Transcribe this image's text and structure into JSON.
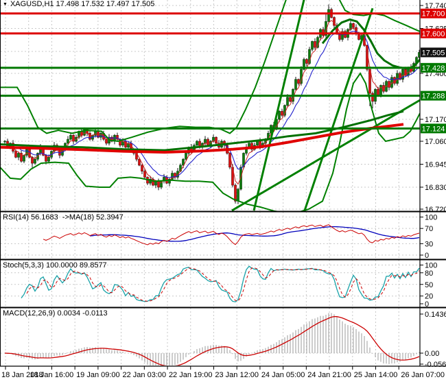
{
  "header": {
    "symbol_line": "XAGUSD,H1 17.498 17.532 17.497 17.505"
  },
  "panels": {
    "rsi_label": "RSI(14) 56.1683  ->MA(18) 52.3947",
    "stoch_label": "Stoch(5,3,3) 100.0000 89.8577",
    "macd_label": "MACD(12,26,9) 0.0034 -0.0113"
  },
  "chart_data": {
    "type": "candlestick",
    "symbol": "XAGUSD",
    "timeframe": "H1",
    "ohlc_display": {
      "open": "17.498",
      "high": "17.532",
      "low": "17.497",
      "close": "17.505"
    },
    "x_labels": [
      "18 Jan 2018",
      "18 Jan 16:00",
      "19 Jan 09:00",
      "22 Jan 03:00",
      "22 Jan 19:00",
      "23 Jan 12:00",
      "24 Jan 05:00",
      "24 Jan 21:00",
      "25 Jan 14:00",
      "26 Jan 07:00"
    ],
    "price_axis": {
      "min": 16.705,
      "max": 17.745,
      "ticks": [
        {
          "label": "17.740",
          "price": 17.74
        },
        {
          "label": "17.625",
          "price": 17.625
        },
        {
          "label": "17.400",
          "price": 17.4
        },
        {
          "label": "17.170",
          "price": 17.17
        },
        {
          "label": "17.060",
          "price": 17.06
        },
        {
          "label": "16.945",
          "price": 16.945
        },
        {
          "label": "16.830",
          "price": 16.83
        },
        {
          "label": "16.720",
          "price": 16.72
        }
      ],
      "grid_prices": [
        17.74,
        17.625,
        17.51,
        17.4,
        17.288,
        17.17,
        17.06,
        16.945,
        16.83,
        16.72
      ]
    },
    "badges": [
      {
        "label": "17.700",
        "price": 17.7,
        "color": "#dd0000"
      },
      {
        "label": "17.600",
        "price": 17.6,
        "color": "#dd0000"
      },
      {
        "label": "17.505",
        "price": 17.505,
        "color": "#111111"
      },
      {
        "label": "17.428",
        "price": 17.428,
        "color": "#007a00"
      },
      {
        "label": "17.288",
        "price": 17.288,
        "color": "#007a00"
      },
      {
        "label": "17.124",
        "price": 17.124,
        "color": "#007a00"
      }
    ],
    "levels": [
      {
        "price": 17.7,
        "color": "#dd0000",
        "width": 3
      },
      {
        "price": 17.6,
        "color": "#dd0000",
        "width": 3
      },
      {
        "price": 17.428,
        "color": "#007800",
        "width": 3
      },
      {
        "price": 17.288,
        "color": "#007800",
        "width": 3
      },
      {
        "price": 17.124,
        "color": "#007800",
        "width": 3
      }
    ],
    "closes": [
      17.06,
      17.03,
      17.05,
      17.01,
      16.98,
      17.0,
      16.96,
      16.99,
      17.02,
      16.98,
      16.95,
      16.97,
      17.0,
      17.03,
      16.99,
      16.96,
      16.98,
      17.01,
      17.04,
      17.02,
      16.99,
      17.02,
      17.05,
      17.07,
      17.09,
      17.06,
      17.08,
      17.11,
      17.09,
      17.12,
      17.1,
      17.07,
      17.09,
      17.11,
      17.08,
      17.1,
      17.07,
      17.05,
      17.08,
      17.06,
      17.09,
      17.07,
      17.04,
      17.06,
      17.03,
      17.05,
      17.02,
      17.0,
      16.97,
      16.94,
      16.91,
      16.88,
      16.85,
      16.87,
      16.84,
      16.86,
      16.83,
      16.86,
      16.88,
      16.85,
      16.87,
      16.9,
      16.88,
      16.91,
      16.94,
      16.97,
      17.0,
      17.03,
      17.01,
      17.04,
      17.06,
      17.03,
      17.05,
      17.07,
      17.04,
      17.06,
      17.08,
      17.05,
      17.03,
      17.06,
      17.04,
      17.0,
      16.93,
      16.84,
      16.76,
      16.82,
      16.93,
      17.0,
      17.03,
      17.05,
      17.02,
      17.04,
      17.06,
      17.03,
      17.05,
      17.07,
      17.1,
      17.14,
      17.12,
      17.17,
      17.21,
      17.19,
      17.24,
      17.28,
      17.26,
      17.32,
      17.37,
      17.35,
      17.42,
      17.47,
      17.45,
      17.52,
      17.56,
      17.53,
      17.58,
      17.62,
      17.59,
      17.66,
      17.72,
      17.68,
      17.64,
      17.6,
      17.57,
      17.61,
      17.58,
      17.62,
      17.65,
      17.63,
      17.6,
      17.57,
      17.59,
      17.54,
      17.42,
      17.3,
      17.26,
      17.32,
      17.29,
      17.34,
      17.31,
      17.36,
      17.33,
      17.38,
      17.35,
      17.4,
      17.37,
      17.42,
      17.39,
      17.43,
      17.41,
      17.45,
      17.48,
      17.505
    ],
    "wick_overrides": {
      "10": {
        "low": 16.925
      },
      "56": {
        "low": 16.815
      },
      "84": {
        "low": 16.748
      },
      "117": {
        "high": 17.7
      },
      "118": {
        "high": 17.745
      },
      "133": {
        "low": 17.235
      },
      "134": {
        "low": 17.225
      }
    },
    "overlays": [
      {
        "name": "trendline-steep-1",
        "color": "#008000",
        "width": 3,
        "points": [
          [
            370,
            16.713
          ],
          [
            443,
            17.768
          ]
        ]
      },
      {
        "name": "trendline-steep-2",
        "color": "#008000",
        "width": 3,
        "points": [
          [
            443,
            16.703
          ],
          [
            543,
            17.726
          ]
        ]
      },
      {
        "name": "trendline-rising",
        "color": "#008000",
        "width": 3,
        "points": [
          [
            338,
            16.713
          ],
          [
            612,
            17.266
          ]
        ]
      },
      {
        "name": "bollinger-upper-left",
        "color": "#008000",
        "width": 2,
        "points": [
          [
            0,
            17.33
          ],
          [
            25,
            17.33
          ],
          [
            40,
            17.24
          ],
          [
            55,
            17.13
          ],
          [
            68,
            17.1
          ],
          [
            85,
            17.115
          ],
          [
            105,
            17.1
          ],
          [
            125,
            17.115
          ],
          [
            148,
            17.11
          ],
          [
            160,
            17.065
          ],
          [
            172,
            17.06
          ],
          [
            192,
            17.08
          ],
          [
            215,
            17.105
          ],
          [
            240,
            17.125
          ],
          [
            262,
            17.135
          ],
          [
            285,
            17.13
          ],
          [
            305,
            17.13
          ],
          [
            322,
            17.12
          ],
          [
            335,
            17.1
          ],
          [
            345,
            17.13
          ],
          [
            358,
            17.22
          ],
          [
            372,
            17.33
          ],
          [
            386,
            17.46
          ],
          [
            398,
            17.58
          ],
          [
            410,
            17.7
          ],
          [
            420,
            17.8
          ]
        ]
      },
      {
        "name": "bollinger-upper-right",
        "color": "#008000",
        "width": 2,
        "points": [
          [
            493,
            17.78
          ],
          [
            503,
            17.715
          ],
          [
            515,
            17.695
          ],
          [
            530,
            17.69
          ],
          [
            545,
            17.7
          ],
          [
            560,
            17.69
          ],
          [
            575,
            17.665
          ],
          [
            592,
            17.64
          ],
          [
            605,
            17.62
          ],
          [
            612,
            17.61
          ]
        ]
      },
      {
        "name": "bollinger-lower",
        "color": "#008000",
        "width": 2,
        "points": [
          [
            0,
            16.93
          ],
          [
            15,
            16.875
          ],
          [
            30,
            16.87
          ],
          [
            45,
            16.92
          ],
          [
            60,
            16.95
          ],
          [
            80,
            16.955
          ],
          [
            100,
            16.95
          ],
          [
            112,
            16.89
          ],
          [
            125,
            16.835
          ],
          [
            145,
            16.83
          ],
          [
            160,
            16.83
          ],
          [
            172,
            16.875
          ],
          [
            190,
            16.88
          ],
          [
            205,
            16.875
          ],
          [
            225,
            16.86
          ],
          [
            250,
            16.865
          ],
          [
            270,
            16.86
          ],
          [
            290,
            16.86
          ],
          [
            310,
            16.855
          ],
          [
            325,
            16.8
          ],
          [
            340,
            16.77
          ],
          [
            360,
            16.745
          ],
          [
            380,
            16.73
          ],
          [
            400,
            16.71
          ],
          [
            420,
            16.7
          ],
          [
            435,
            16.705
          ],
          [
            450,
            16.72
          ],
          [
            470,
            16.76
          ],
          [
            485,
            16.9
          ],
          [
            495,
            17.05
          ],
          [
            505,
            17.22
          ],
          [
            515,
            17.35
          ],
          [
            525,
            17.4
          ],
          [
            533,
            17.35
          ],
          [
            542,
            17.22
          ],
          [
            552,
            17.1
          ],
          [
            562,
            17.06
          ],
          [
            575,
            17.07
          ],
          [
            588,
            17.08
          ],
          [
            598,
            17.11
          ],
          [
            606,
            17.16
          ],
          [
            612,
            17.2
          ]
        ]
      },
      {
        "name": "ma-green-slow",
        "color": "#007000",
        "width": 3,
        "points": [
          [
            0,
            17.045
          ],
          [
            60,
            17.035
          ],
          [
            120,
            17.03
          ],
          [
            180,
            17.02
          ],
          [
            240,
            17.015
          ],
          [
            300,
            17.035
          ],
          [
            340,
            17.05
          ],
          [
            380,
            17.065
          ],
          [
            420,
            17.085
          ],
          [
            460,
            17.1
          ],
          [
            500,
            17.13
          ],
          [
            540,
            17.165
          ],
          [
            565,
            17.19
          ],
          [
            588,
            17.21
          ]
        ]
      },
      {
        "name": "ma-red-thick",
        "color": "#e00000",
        "width": 4,
        "points": [
          [
            0,
            17.03
          ],
          [
            60,
            17.025
          ],
          [
            120,
            17.018
          ],
          [
            180,
            17.01
          ],
          [
            240,
            17.005
          ],
          [
            300,
            17.012
          ],
          [
            340,
            17.02
          ],
          [
            380,
            17.032
          ],
          [
            420,
            17.055
          ],
          [
            460,
            17.08
          ],
          [
            500,
            17.105
          ],
          [
            540,
            17.125
          ],
          [
            565,
            17.135
          ],
          [
            588,
            17.145
          ]
        ]
      },
      {
        "name": "ma-green-fast-descending",
        "color": "#007000",
        "width": 3,
        "points": [
          [
            470,
            17.55
          ],
          [
            485,
            17.615
          ],
          [
            498,
            17.655
          ],
          [
            510,
            17.67
          ],
          [
            520,
            17.66
          ],
          [
            530,
            17.62
          ],
          [
            540,
            17.565
          ],
          [
            550,
            17.5
          ],
          [
            560,
            17.465
          ],
          [
            572,
            17.44
          ],
          [
            582,
            17.43
          ],
          [
            592,
            17.425
          ],
          [
            600,
            17.43
          ],
          [
            606,
            17.445
          ],
          [
            612,
            17.47
          ]
        ]
      }
    ],
    "indicators": {
      "rsi": {
        "period": 14,
        "ma_period": 18,
        "value": 56.1683,
        "ma_value": 52.3947,
        "axis_ticks": [
          100,
          70,
          30,
          0
        ],
        "level_lines": [
          100,
          70,
          30,
          0
        ]
      },
      "stoch": {
        "k": 5,
        "d": 3,
        "slowing": 3,
        "value": 100.0,
        "signal": 89.8577,
        "axis_ticks": [
          100,
          80,
          50,
          20,
          0
        ],
        "level_lines": [
          100,
          80,
          50,
          20
        ]
      },
      "macd": {
        "fast": 12,
        "slow": 26,
        "signal_period": 9,
        "value": 0.0034,
        "signal_value": -0.0113,
        "axis_ticks": [
          {
            "label": "0.1436",
            "value": 0.1436
          },
          {
            "label": "0.00",
            "value": 0
          },
          {
            "label": "-0.0569",
            "value": -0.0569
          }
        ]
      }
    },
    "colors": {
      "bull_fill": "#0e7d0e",
      "bear_fill": "#dd1111",
      "candle_border": "#003300",
      "wick": "#1a1a1a",
      "grid": "#c8c8c8",
      "axis_text": "#000000",
      "border": "#000000",
      "ema_fast": "#cc2222",
      "ema_slow": "#2222cc",
      "rsi_line": "#cc0000",
      "rsi_ma": "#0000bb",
      "stoch_k": "#18a2a8",
      "stoch_d": "#cc0000",
      "macd_hist": "#ababab",
      "macd_signal": "#cc0000",
      "badge_text": "#ffffff"
    }
  }
}
